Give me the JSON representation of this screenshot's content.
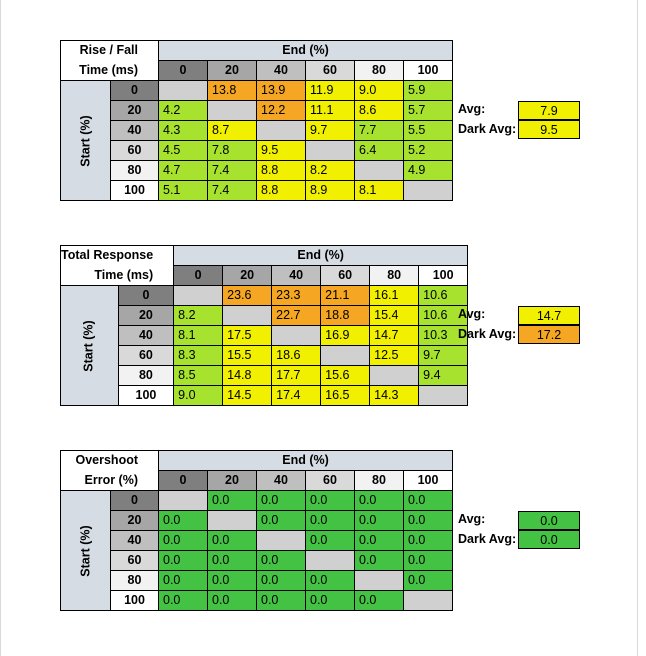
{
  "palette": {
    "orange": "#f5a623",
    "yellow": "#f0f000",
    "lime": "#a6e22e",
    "green": "#44c244",
    "empty": "#d0d0d0",
    "header_dark": "#7f7f7f",
    "header_mid": "#a6a6a6",
    "header_light": "#bfbfbf",
    "header_lighter": "#d9d9d9",
    "header_lightest": "#f2f2f2",
    "header_white": "#ffffff",
    "band": "#d6dce4"
  },
  "chart_data": [
    {
      "type": "table",
      "title_line1": "Rise / Fall",
      "title_line2": "Time (ms)",
      "column_axis_label": "End (%)",
      "row_axis_label": "Start (%)",
      "columns": [
        "0",
        "20",
        "40",
        "60",
        "80",
        "100"
      ],
      "rows": [
        "0",
        "20",
        "40",
        "60",
        "80",
        "100"
      ],
      "values": [
        [
          "",
          "13.8",
          "13.9",
          "11.9",
          "9.0",
          "5.9"
        ],
        [
          "4.2",
          "",
          "12.2",
          "11.1",
          "8.6",
          "5.7"
        ],
        [
          "4.3",
          "8.7",
          "",
          "9.7",
          "7.7",
          "5.5"
        ],
        [
          "4.5",
          "7.8",
          "9.5",
          "",
          "6.4",
          "5.2"
        ],
        [
          "4.7",
          "7.4",
          "8.8",
          "8.2",
          "",
          "4.9"
        ],
        [
          "5.1",
          "7.4",
          "8.8",
          "8.9",
          "8.1",
          ""
        ]
      ],
      "colors": [
        [
          "empty",
          "orange",
          "orange",
          "yellow",
          "yellow",
          "lime"
        ],
        [
          "lime",
          "empty",
          "orange",
          "yellow",
          "yellow",
          "lime"
        ],
        [
          "lime",
          "yellow",
          "empty",
          "yellow",
          "lime",
          "lime"
        ],
        [
          "lime",
          "lime",
          "yellow",
          "empty",
          "lime",
          "lime"
        ],
        [
          "lime",
          "lime",
          "yellow",
          "yellow",
          "empty",
          "lime"
        ],
        [
          "lime",
          "lime",
          "yellow",
          "yellow",
          "yellow",
          "empty"
        ]
      ],
      "avg_label": "Avg:",
      "avg_value": "7.9",
      "avg_color": "yellow",
      "dark_avg_label": "Dark Avg:",
      "dark_avg_value": "9.5",
      "dark_avg_color": "yellow"
    },
    {
      "type": "table",
      "title_line1": "Total Response",
      "title_line2": "Time (ms)",
      "column_axis_label": "End (%)",
      "row_axis_label": "Start (%)",
      "columns": [
        "0",
        "20",
        "40",
        "60",
        "80",
        "100"
      ],
      "rows": [
        "0",
        "20",
        "40",
        "60",
        "80",
        "100"
      ],
      "values": [
        [
          "",
          "23.6",
          "23.3",
          "21.1",
          "16.1",
          "10.6"
        ],
        [
          "8.2",
          "",
          "22.7",
          "18.8",
          "15.4",
          "10.6"
        ],
        [
          "8.1",
          "17.5",
          "",
          "16.9",
          "14.7",
          "10.3"
        ],
        [
          "8.3",
          "15.5",
          "18.6",
          "",
          "12.5",
          "9.7"
        ],
        [
          "8.5",
          "14.8",
          "17.7",
          "15.6",
          "",
          "9.4"
        ],
        [
          "9.0",
          "14.5",
          "17.4",
          "16.5",
          "14.3",
          ""
        ]
      ],
      "colors": [
        [
          "empty",
          "orange",
          "orange",
          "orange",
          "yellow",
          "lime"
        ],
        [
          "lime",
          "empty",
          "orange",
          "orange",
          "yellow",
          "lime"
        ],
        [
          "lime",
          "yellow",
          "empty",
          "yellow",
          "yellow",
          "lime"
        ],
        [
          "lime",
          "yellow",
          "yellow",
          "empty",
          "yellow",
          "lime"
        ],
        [
          "lime",
          "yellow",
          "yellow",
          "yellow",
          "empty",
          "lime"
        ],
        [
          "lime",
          "yellow",
          "yellow",
          "yellow",
          "yellow",
          "empty"
        ]
      ],
      "avg_label": "Avg:",
      "avg_value": "14.7",
      "avg_color": "yellow",
      "dark_avg_label": "Dark Avg:",
      "dark_avg_value": "17.2",
      "dark_avg_color": "orange"
    },
    {
      "type": "table",
      "title_line1": "Overshoot",
      "title_line2": "Error (%)",
      "column_axis_label": "End (%)",
      "row_axis_label": "Start (%)",
      "columns": [
        "0",
        "20",
        "40",
        "60",
        "80",
        "100"
      ],
      "rows": [
        "0",
        "20",
        "40",
        "60",
        "80",
        "100"
      ],
      "values": [
        [
          "",
          "0.0",
          "0.0",
          "0.0",
          "0.0",
          "0.0"
        ],
        [
          "0.0",
          "",
          "0.0",
          "0.0",
          "0.0",
          "0.0"
        ],
        [
          "0.0",
          "0.0",
          "",
          "0.0",
          "0.0",
          "0.0"
        ],
        [
          "0.0",
          "0.0",
          "0.0",
          "",
          "0.0",
          "0.0"
        ],
        [
          "0.0",
          "0.0",
          "0.0",
          "0.0",
          "",
          "0.0"
        ],
        [
          "0.0",
          "0.0",
          "0.0",
          "0.0",
          "0.0",
          ""
        ]
      ],
      "colors": [
        [
          "empty",
          "green",
          "green",
          "green",
          "green",
          "green"
        ],
        [
          "green",
          "empty",
          "green",
          "green",
          "green",
          "green"
        ],
        [
          "green",
          "green",
          "empty",
          "green",
          "green",
          "green"
        ],
        [
          "green",
          "green",
          "green",
          "empty",
          "green",
          "green"
        ],
        [
          "green",
          "green",
          "green",
          "green",
          "empty",
          "green"
        ],
        [
          "green",
          "green",
          "green",
          "green",
          "green",
          "empty"
        ]
      ],
      "avg_label": "Avg:",
      "avg_value": "0.0",
      "avg_color": "green",
      "dark_avg_label": "Dark Avg:",
      "dark_avg_value": "0.0",
      "dark_avg_color": "green"
    }
  ]
}
